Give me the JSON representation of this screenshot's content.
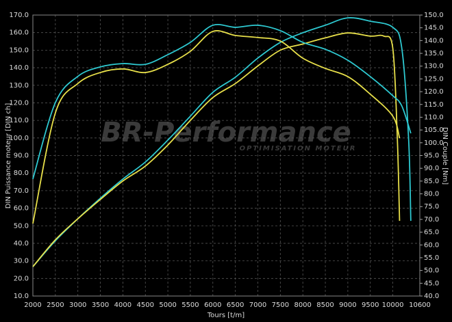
{
  "chart_data": {
    "type": "line",
    "xlabel": "Tours [t/m]",
    "ylabel": "DIN Puissance moteur [DIN ch]",
    "y2label": "DIN Couple [Nm]",
    "watermark": "BR-Performance",
    "watermark_sub": "OPTIMISATION MOTEUR",
    "xlim": [
      2000,
      10600
    ],
    "ylim": [
      10,
      170
    ],
    "y2lim": [
      40,
      150
    ],
    "grid": true,
    "xticks": [
      2000,
      2500,
      3000,
      3500,
      4000,
      4500,
      5000,
      5500,
      6000,
      6500,
      7000,
      7500,
      8000,
      8500,
      9000,
      9500,
      10000,
      10600
    ],
    "yticks": [
      {
        "value": 10,
        "label": "10.0"
      },
      {
        "value": 20,
        "label": "20.0"
      },
      {
        "value": 30,
        "label": "30.0"
      },
      {
        "value": 40,
        "label": "40.0"
      },
      {
        "value": 50,
        "label": "50.0"
      },
      {
        "value": 60,
        "label": "60.0"
      },
      {
        "value": 70,
        "label": "70.0"
      },
      {
        "value": 80,
        "label": "80.0"
      },
      {
        "value": 90,
        "label": "90.0"
      },
      {
        "value": 100,
        "label": "100.0"
      },
      {
        "value": 110,
        "label": "110.0"
      },
      {
        "value": 120,
        "label": "120.0"
      },
      {
        "value": 130,
        "label": "130.0"
      },
      {
        "value": 140,
        "label": "140.0"
      },
      {
        "value": 150,
        "label": "150.0"
      },
      {
        "value": 160,
        "label": "160.0"
      },
      {
        "value": 170,
        "label": "170.0"
      }
    ],
    "y2ticks": [
      {
        "value": 40,
        "label": "40.0"
      },
      {
        "value": 45,
        "label": "45.0"
      },
      {
        "value": 50,
        "label": "50.0"
      },
      {
        "value": 55,
        "label": "55.0"
      },
      {
        "value": 60,
        "label": "60.0"
      },
      {
        "value": 65,
        "label": "65.0"
      },
      {
        "value": 70,
        "label": "70.0"
      },
      {
        "value": 75,
        "label": "75.0"
      },
      {
        "value": 80,
        "label": "80.0"
      },
      {
        "value": 85,
        "label": "85.0"
      },
      {
        "value": 90,
        "label": "90.0"
      },
      {
        "value": 95,
        "label": "95.0"
      },
      {
        "value": 100,
        "label": "100.0"
      },
      {
        "value": 105,
        "label": "105.0"
      },
      {
        "value": 110,
        "label": "110.0"
      },
      {
        "value": 115,
        "label": "115.0"
      },
      {
        "value": 120,
        "label": "120.0"
      },
      {
        "value": 125,
        "label": "125.0"
      },
      {
        "value": 130,
        "label": "130.0"
      },
      {
        "value": 135,
        "label": "135.0"
      },
      {
        "value": 140,
        "label": "140.0"
      },
      {
        "value": 145,
        "label": "145.0"
      },
      {
        "value": 150,
        "label": "150.0"
      }
    ],
    "series": [
      {
        "color": "#2ec9d1",
        "axis": "y",
        "x": [
          2000,
          2500,
          3000,
          3500,
          4000,
          4500,
          5000,
          5500,
          6000,
          6500,
          7000,
          7500,
          8000,
          8500,
          9000,
          9500,
          10000,
          10200,
          10350,
          10400
        ],
        "values": [
          26.7,
          41.5,
          54,
          65.7,
          76.6,
          86.3,
          98.8,
          112.4,
          126,
          134.6,
          145.5,
          154.4,
          159.9,
          164.2,
          168.4,
          166.5,
          163,
          151,
          100,
          52.8
        ]
      },
      {
        "color": "#e8e04a",
        "axis": "y",
        "x": [
          2000,
          2500,
          3000,
          3500,
          4000,
          4500,
          5000,
          5500,
          6000,
          6500,
          7000,
          7500,
          8000,
          8500,
          9000,
          9500,
          9800,
          10000,
          10100,
          10150
        ],
        "values": [
          26.7,
          42,
          54,
          65,
          75.5,
          84,
          96,
          110,
          123,
          131,
          141,
          150,
          153.5,
          157,
          159.8,
          158,
          158,
          151,
          100,
          52.8
        ]
      },
      {
        "color": "#2ec9d1",
        "axis": "y2",
        "x": [
          2000,
          2500,
          3000,
          3500,
          4000,
          4500,
          5000,
          5500,
          6000,
          6500,
          7000,
          7500,
          8000,
          8500,
          9000,
          9500,
          10000,
          10200,
          10400
        ],
        "values": [
          85.8,
          115.7,
          126,
          129.7,
          131,
          130.7,
          134.5,
          139.3,
          146,
          145.2,
          146,
          143.9,
          139.3,
          136.6,
          132.3,
          125.9,
          118.4,
          114.4,
          103.7
        ]
      },
      {
        "color": "#e8e04a",
        "axis": "y2",
        "x": [
          2000,
          2500,
          3000,
          3500,
          4000,
          4500,
          5000,
          5500,
          6000,
          6500,
          7000,
          7500,
          8000,
          8500,
          9000,
          9500,
          10000,
          10150
        ],
        "values": [
          68.4,
          111.7,
          123.2,
          127.5,
          128.9,
          127.5,
          130.7,
          135.8,
          143.6,
          142,
          141.2,
          139.8,
          133.1,
          129.1,
          125.9,
          119,
          110.4,
          101.8
        ]
      }
    ]
  }
}
